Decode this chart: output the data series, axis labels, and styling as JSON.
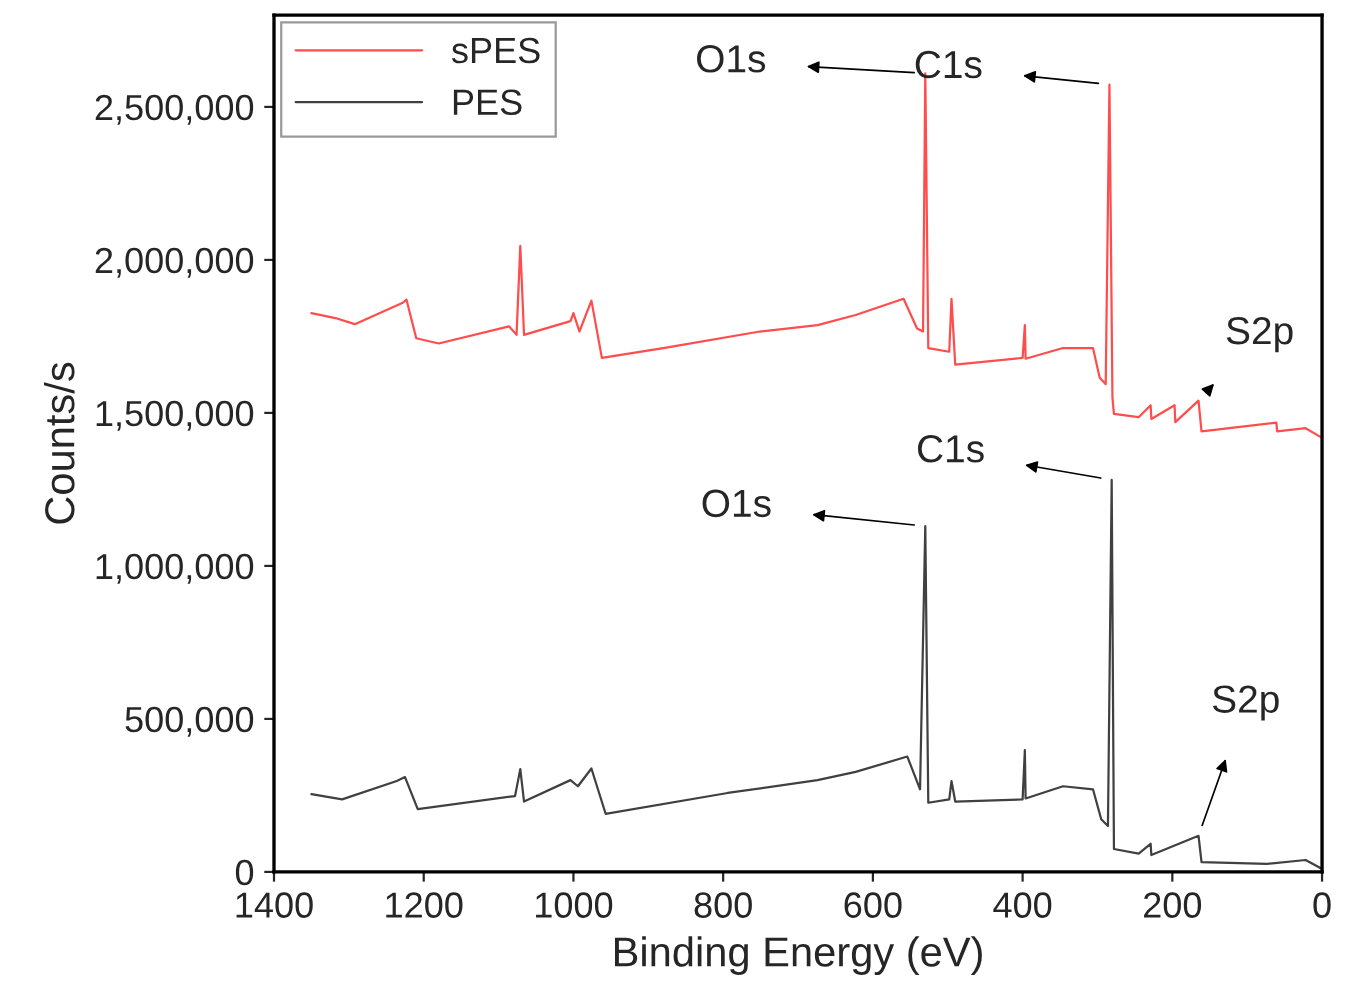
{
  "chart_data": {
    "type": "line",
    "xlabel": "Binding Energy (eV)",
    "ylabel": "Counts/s",
    "xlim": [
      1400,
      0
    ],
    "xticks": [
      1400,
      1200,
      1000,
      800,
      600,
      400,
      200,
      0
    ],
    "ylim": [
      0,
      2800000
    ],
    "yticks": [
      {
        "value": 0,
        "label": "0"
      },
      {
        "value": 500000,
        "label": "500,000"
      },
      {
        "value": 1000000,
        "label": "1,000,000"
      },
      {
        "value": 1500000,
        "label": "1,500,000"
      },
      {
        "value": 2000000,
        "label": "2,000,000"
      },
      {
        "value": 2500000,
        "label": "2,500,000"
      }
    ],
    "grid": false,
    "legend": "top left",
    "marker": "none",
    "line_style": "solid",
    "series": [
      {
        "name": "sPES",
        "color": "#ff4d4d",
        "x": [
          1350,
          1318,
          1292,
          1228,
          1223,
          1210,
          1180,
          1086,
          1076,
          1071,
          1066,
          1004,
          1000,
          992,
          976,
          962,
          880,
          751,
          674,
          623,
          559,
          541,
          533,
          530,
          526,
          498,
          495,
          490,
          400,
          397,
          396,
          346,
          306,
          297,
          289,
          284,
          280,
          278,
          245,
          229,
          228,
          197,
          196,
          165,
          161,
          61,
          60,
          22,
          1
        ],
        "values": [
          1826000,
          1810000,
          1790000,
          1860000,
          1870000,
          1744000,
          1727000,
          1783000,
          1755000,
          2046000,
          1755000,
          1800000,
          1826000,
          1766000,
          1867000,
          1680000,
          1712000,
          1766000,
          1787000,
          1820000,
          1873000,
          1776000,
          1766000,
          2610000,
          1712000,
          1700000,
          1873000,
          1658000,
          1680000,
          1787000,
          1677000,
          1712000,
          1712000,
          1615000,
          1594000,
          2573000,
          1550000,
          1497000,
          1486000,
          1525000,
          1480000,
          1525000,
          1470000,
          1540000,
          1440000,
          1468000,
          1440000,
          1450000,
          1420000
        ]
      },
      {
        "name": "PES",
        "color": "#404040",
        "x": [
          1350,
          1309,
          1236,
          1225,
          1208,
          1078,
          1071,
          1066,
          1004,
          994,
          976,
          957,
          794,
          674,
          623,
          554,
          537,
          530,
          526,
          498,
          495,
          490,
          400,
          397,
          396,
          346,
          306,
          295,
          286,
          281,
          278,
          245,
          229,
          228,
          165,
          161,
          74,
          22,
          1
        ],
        "values": [
          254000,
          237000,
          297000,
          310000,
          205000,
          248000,
          336000,
          230000,
          300000,
          280000,
          338000,
          190000,
          258000,
          300000,
          327000,
          377000,
          270000,
          1130000,
          226000,
          237000,
          297000,
          230000,
          237000,
          398000,
          240000,
          280000,
          270000,
          172000,
          150000,
          1281000,
          75000,
          60000,
          92000,
          55000,
          118000,
          32000,
          26000,
          39000,
          11000
        ]
      }
    ],
    "annotations": [
      {
        "text": "O1s",
        "x": 530,
        "y": 2610000
      },
      {
        "text": "C1s",
        "x": 284,
        "y": 2573000
      },
      {
        "text": "S2p",
        "x": 165,
        "y": 1540000
      },
      {
        "text": "O1s",
        "x": 530,
        "y": 1130000
      },
      {
        "text": "C1s",
        "x": 281,
        "y": 1281000
      },
      {
        "text": "S2p",
        "x": 165,
        "y": 118000
      }
    ]
  }
}
